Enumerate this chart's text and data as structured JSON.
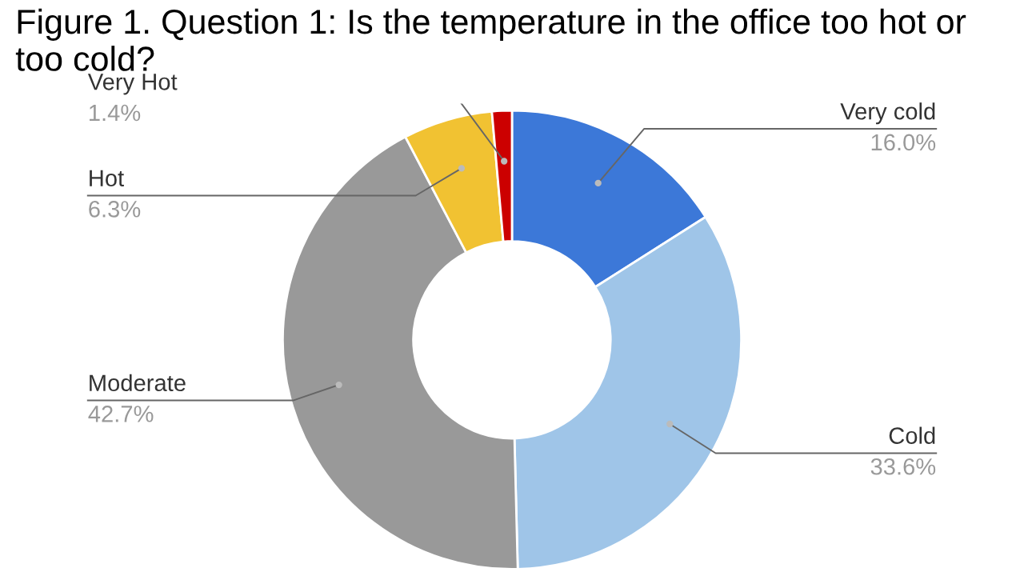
{
  "chart_data": {
    "type": "donut",
    "title": "Figure 1. Question 1: Is the temperature in the office too hot or too cold?",
    "categories": [
      "Very cold",
      "Cold",
      "Moderate",
      "Hot",
      "Very Hot"
    ],
    "values": [
      16.0,
      33.6,
      42.7,
      6.3,
      1.4
    ],
    "colors": [
      "#3c78d8",
      "#9fc5e8",
      "#999999",
      "#f1c232",
      "#cc0000"
    ],
    "value_labels": [
      "16.0%",
      "33.6%",
      "42.7%",
      "6.3%",
      "1.4%"
    ]
  }
}
